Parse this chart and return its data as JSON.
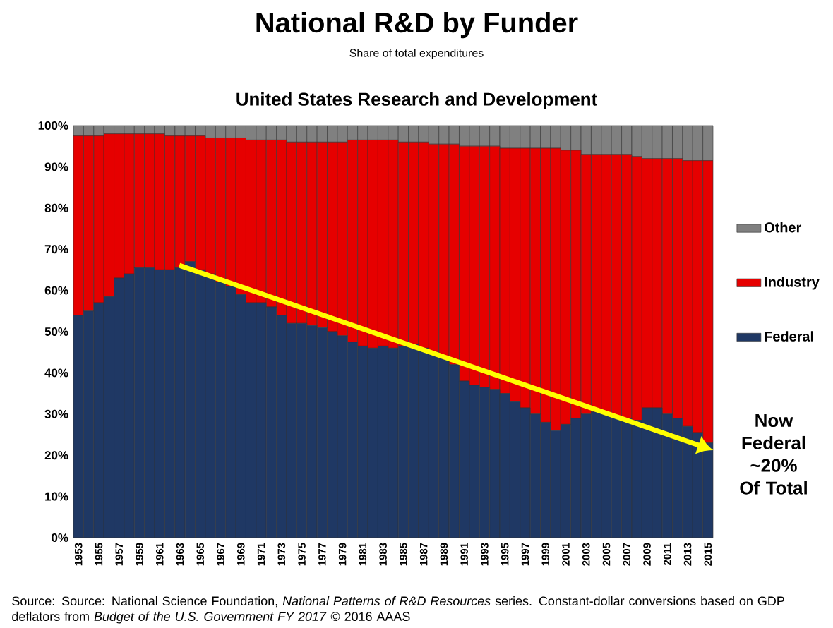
{
  "chart_data": {
    "type": "bar",
    "stacked": true,
    "title": "National R&D by Funder",
    "subtitle": "Share of total expenditures",
    "annotations": [
      "United States Research and Development",
      "Now Federal ~20% Of Total",
      "Source: Source: National Science Foundation, *National Patterns of R&D Resources* series. Constant-dollar conversions based on GDP deflators from *Budget of the U.S. Government FY 2017* © 2016 AAAS"
    ],
    "categories": [
      "1953",
      null,
      "1955",
      null,
      "1957",
      null,
      "1959",
      null,
      "1961",
      null,
      "1963",
      null,
      "1965",
      null,
      "1967",
      null,
      "1969",
      null,
      "1971",
      null,
      "1973",
      null,
      "1975",
      null,
      "1977",
      null,
      "1979",
      null,
      "1981",
      null,
      "1983",
      null,
      "1985",
      null,
      "1987",
      null,
      "1989",
      null,
      "1991",
      null,
      "1993",
      null,
      "1995",
      null,
      "1997",
      null,
      "1999",
      null,
      "2001",
      null,
      "2003",
      null,
      "2005",
      null,
      "2007",
      null,
      "2009",
      null,
      "2011",
      null,
      "2013",
      null,
      "2015"
    ],
    "series": [
      {
        "name": "Federal",
        "color": "#1f3864",
        "values": [
          54,
          55,
          57,
          58.5,
          63,
          64,
          65.5,
          65.5,
          65,
          65,
          65.5,
          67,
          65,
          64,
          62,
          61,
          59,
          57,
          57,
          56,
          54,
          52,
          52,
          51.5,
          51,
          50,
          49,
          47.5,
          46.5,
          46,
          46.5,
          46,
          46.5,
          47,
          46,
          45,
          44,
          42,
          38,
          37,
          36.5,
          36,
          35,
          33,
          31.5,
          30,
          28,
          26,
          27.5,
          29,
          30,
          30.5,
          30,
          29.5,
          29,
          28.5,
          31.5,
          31.5,
          30,
          29,
          27,
          25.5,
          23
        ]
      },
      {
        "name": "Industry",
        "color": "#e60000",
        "values": [
          43.5,
          42.5,
          40.5,
          39.5,
          35,
          34,
          32.5,
          32.5,
          33,
          32.5,
          32,
          30.5,
          32.5,
          33,
          35,
          36,
          38,
          39.5,
          39.5,
          40.5,
          42.5,
          44,
          44,
          44.5,
          45,
          46,
          47,
          49,
          50,
          50.5,
          50,
          50.5,
          49.5,
          49,
          50,
          50.5,
          51.5,
          53.5,
          57,
          58,
          58.5,
          59,
          59.5,
          61.5,
          63,
          64.5,
          66.5,
          68.5,
          66.5,
          65,
          63,
          62.5,
          63,
          63.5,
          64,
          64,
          60.5,
          60.5,
          62,
          63,
          64.5,
          66,
          68.5
        ]
      },
      {
        "name": "Other",
        "color": "#808080",
        "values": [
          2.5,
          2.5,
          2.5,
          2,
          2,
          2,
          2,
          2,
          2,
          2.5,
          2.5,
          2.5,
          2.5,
          3,
          3,
          3,
          3,
          3.5,
          3.5,
          3.5,
          3.5,
          4,
          4,
          4,
          4,
          4,
          4,
          3.5,
          3.5,
          3.5,
          3.5,
          3.5,
          4,
          4,
          4,
          4.5,
          4.5,
          4.5,
          5,
          5,
          5,
          5,
          5.5,
          5.5,
          5.5,
          5.5,
          5.5,
          5.5,
          6,
          6,
          7,
          7,
          7,
          7,
          7,
          7.5,
          8,
          8,
          8,
          8,
          8.5,
          8.5,
          8.5
        ]
      }
    ],
    "ylim": [
      0,
      100
    ],
    "yticks": [
      {
        "value": 0,
        "label": "0%"
      },
      {
        "value": 10,
        "label": "10%"
      },
      {
        "value": 20,
        "label": "20%"
      },
      {
        "value": 30,
        "label": "30%"
      },
      {
        "value": 40,
        "label": "40%"
      },
      {
        "value": 50,
        "label": "50%"
      },
      {
        "value": 60,
        "label": "60%"
      },
      {
        "value": 70,
        "label": "70%"
      },
      {
        "value": 80,
        "label": "80%"
      },
      {
        "value": 90,
        "label": "90%"
      },
      {
        "value": 100,
        "label": "100%"
      }
    ],
    "legend": "right",
    "grid": false
  }
}
